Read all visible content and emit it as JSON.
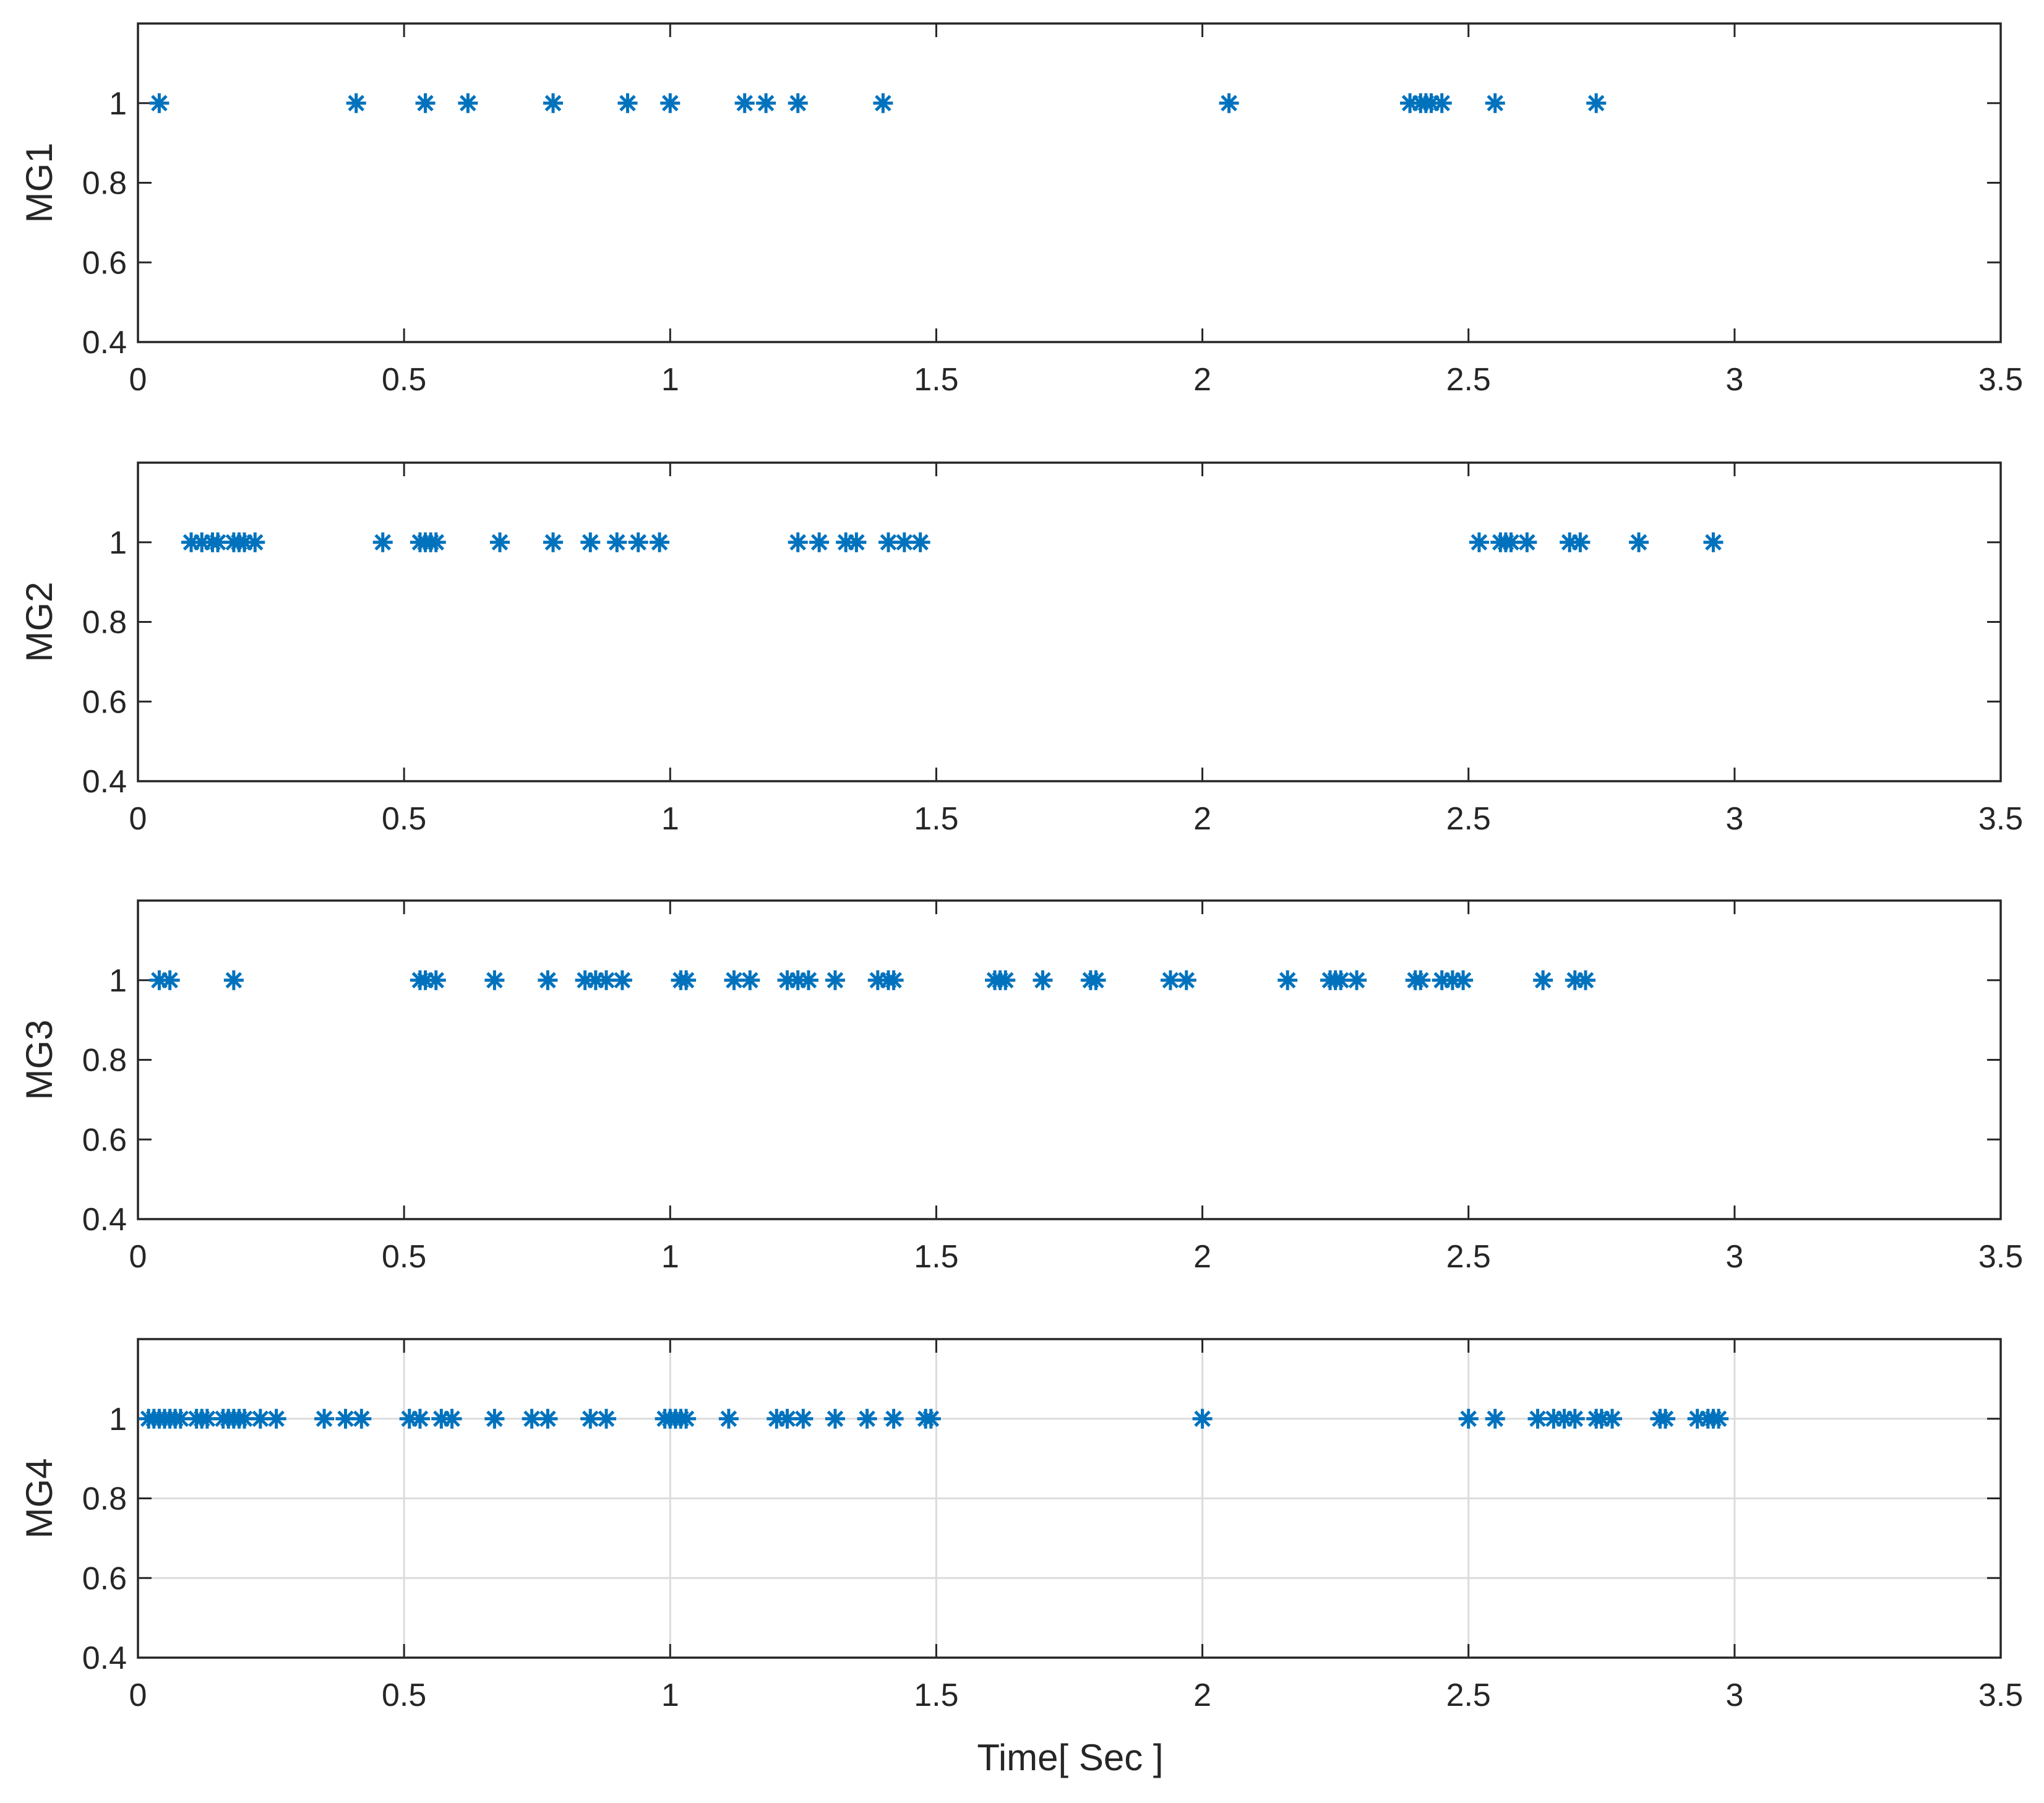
{
  "chart_data": [
    {
      "type": "scatter",
      "ylabel": "MG1",
      "xlabel": "",
      "xlim": [
        0,
        3.5
      ],
      "ylim": [
        0.4,
        1.2
      ],
      "xticks": [
        "0",
        "0.5",
        "1",
        "1.5",
        "2",
        "2.5",
        "3",
        "3.5"
      ],
      "yticks": [
        "0.4",
        "0.6",
        "0.8",
        "1"
      ],
      "grid": false,
      "marker": "asterisk",
      "color": "#0072BD",
      "series": [
        {
          "x": [
            0.04,
            0.41,
            0.54,
            0.62,
            0.78,
            0.92,
            1.0,
            1.14,
            1.18,
            1.24,
            1.4,
            2.05,
            2.39,
            2.41,
            2.42,
            2.43,
            2.45,
            2.55,
            2.74
          ],
          "y": [
            1,
            1,
            1,
            1,
            1,
            1,
            1,
            1,
            1,
            1,
            1,
            1,
            1,
            1,
            1,
            1,
            1,
            1,
            1
          ]
        }
      ]
    },
    {
      "type": "scatter",
      "ylabel": "MG2",
      "xlabel": "",
      "xlim": [
        0,
        3.5
      ],
      "ylim": [
        0.4,
        1.2
      ],
      "xticks": [
        "0",
        "0.5",
        "1",
        "1.5",
        "2",
        "2.5",
        "3",
        "3.5"
      ],
      "yticks": [
        "0.4",
        "0.6",
        "0.8",
        "1"
      ],
      "grid": false,
      "marker": "asterisk",
      "color": "#0072BD",
      "series": [
        {
          "x": [
            0.1,
            0.12,
            0.14,
            0.15,
            0.18,
            0.19,
            0.2,
            0.22,
            0.46,
            0.53,
            0.54,
            0.55,
            0.56,
            0.68,
            0.78,
            0.85,
            0.9,
            0.94,
            0.98,
            1.24,
            1.28,
            1.33,
            1.35,
            1.41,
            1.44,
            1.47,
            2.52,
            2.56,
            2.57,
            2.58,
            2.61,
            2.69,
            2.71,
            2.82,
            2.96
          ],
          "y": [
            1,
            1,
            1,
            1,
            1,
            1,
            1,
            1,
            1,
            1,
            1,
            1,
            1,
            1,
            1,
            1,
            1,
            1,
            1,
            1,
            1,
            1,
            1,
            1,
            1,
            1,
            1,
            1,
            1,
            1,
            1,
            1,
            1,
            1,
            1
          ]
        }
      ]
    },
    {
      "type": "scatter",
      "ylabel": "MG3",
      "xlabel": "",
      "xlim": [
        0,
        3.5
      ],
      "ylim": [
        0.4,
        1.2
      ],
      "xticks": [
        "0",
        "0.5",
        "1",
        "1.5",
        "2",
        "2.5",
        "3",
        "3.5"
      ],
      "yticks": [
        "0.4",
        "0.6",
        "0.8",
        "1"
      ],
      "grid": false,
      "marker": "asterisk",
      "color": "#0072BD",
      "series": [
        {
          "x": [
            0.04,
            0.06,
            0.18,
            0.53,
            0.54,
            0.56,
            0.67,
            0.77,
            0.84,
            0.86,
            0.88,
            0.91,
            1.02,
            1.03,
            1.12,
            1.15,
            1.22,
            1.24,
            1.26,
            1.31,
            1.39,
            1.41,
            1.42,
            1.61,
            1.62,
            1.63,
            1.7,
            1.79,
            1.8,
            1.94,
            1.97,
            2.16,
            2.24,
            2.25,
            2.26,
            2.29,
            2.4,
            2.41,
            2.45,
            2.47,
            2.49,
            2.64,
            2.7,
            2.72
          ],
          "y": [
            1,
            1,
            1,
            1,
            1,
            1,
            1,
            1,
            1,
            1,
            1,
            1,
            1,
            1,
            1,
            1,
            1,
            1,
            1,
            1,
            1,
            1,
            1,
            1,
            1,
            1,
            1,
            1,
            1,
            1,
            1,
            1,
            1,
            1,
            1,
            1,
            1,
            1,
            1,
            1,
            1,
            1,
            1,
            1
          ]
        }
      ]
    },
    {
      "type": "scatter",
      "ylabel": "MG4",
      "xlabel": "Time[ Sec ]",
      "xlim": [
        0,
        3.5
      ],
      "ylim": [
        0.4,
        1.2
      ],
      "xticks": [
        "0",
        "0.5",
        "1",
        "1.5",
        "2",
        "2.5",
        "3",
        "3.5"
      ],
      "yticks": [
        "0.4",
        "0.6",
        "0.8",
        "1"
      ],
      "grid": true,
      "marker": "asterisk",
      "color": "#0072BD",
      "series": [
        {
          "x": [
            0.02,
            0.03,
            0.04,
            0.05,
            0.06,
            0.07,
            0.08,
            0.11,
            0.12,
            0.13,
            0.16,
            0.17,
            0.18,
            0.19,
            0.2,
            0.23,
            0.26,
            0.35,
            0.39,
            0.42,
            0.51,
            0.53,
            0.57,
            0.59,
            0.67,
            0.74,
            0.77,
            0.85,
            0.88,
            0.99,
            1.0,
            1.01,
            1.02,
            1.03,
            1.11,
            1.2,
            1.22,
            1.25,
            1.31,
            1.37,
            1.42,
            1.48,
            1.49,
            2.0,
            2.5,
            2.55,
            2.63,
            2.66,
            2.68,
            2.7,
            2.74,
            2.75,
            2.77,
            2.86,
            2.87,
            2.93,
            2.95,
            2.96,
            2.97
          ],
          "y": [
            1,
            1,
            1,
            1,
            1,
            1,
            1,
            1,
            1,
            1,
            1,
            1,
            1,
            1,
            1,
            1,
            1,
            1,
            1,
            1,
            1,
            1,
            1,
            1,
            1,
            1,
            1,
            1,
            1,
            1,
            1,
            1,
            1,
            1,
            1,
            1,
            1,
            1,
            1,
            1,
            1,
            1,
            1,
            1,
            1,
            1,
            1,
            1,
            1,
            1,
            1,
            1,
            1,
            1,
            1,
            1,
            1,
            1,
            1
          ]
        }
      ]
    }
  ]
}
